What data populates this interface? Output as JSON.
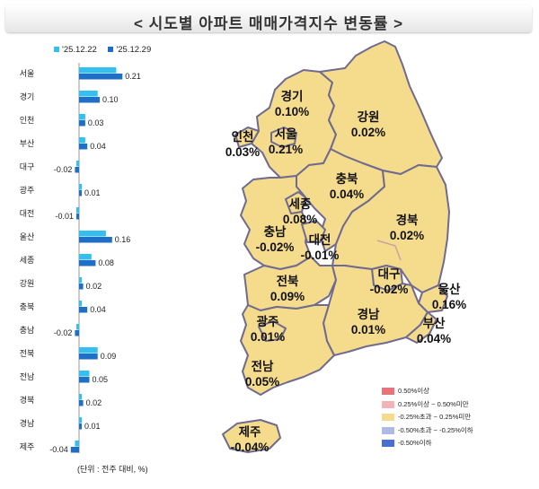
{
  "title": "< 시도별 아파트 매매가격지수 변동률 >",
  "legend": {
    "week1": {
      "label": "'25.12.22",
      "color": "#33c0f0"
    },
    "week2": {
      "label": "'25.12.29",
      "color": "#1f6fc6"
    }
  },
  "chart_data": {
    "type": "bar",
    "orientation": "horizontal",
    "categories": [
      "서울",
      "경기",
      "인천",
      "부산",
      "대구",
      "광주",
      "대전",
      "울산",
      "세종",
      "강원",
      "충북",
      "충남",
      "전북",
      "전남",
      "경북",
      "경남",
      "제주"
    ],
    "series": [
      {
        "name": "'25.12.22",
        "values": [
          0.18,
          0.09,
          0.03,
          0.03,
          -0.01,
          0.01,
          -0.01,
          0.13,
          0.06,
          0.01,
          0.01,
          -0.01,
          0.09,
          0.05,
          0.01,
          0.01,
          -0.02
        ]
      },
      {
        "name": "'25.12.29",
        "values": [
          0.21,
          0.1,
          0.03,
          0.04,
          -0.02,
          0.01,
          -0.01,
          0.16,
          0.08,
          0.02,
          0.04,
          -0.02,
          0.09,
          0.05,
          0.02,
          0.01,
          -0.04
        ]
      }
    ],
    "data_labels": [
      "0.21",
      "0.10",
      "0.03",
      "0.04",
      "-0.02",
      "0.01",
      "-0.01",
      "0.16",
      "0.08",
      "0.02",
      "0.04",
      "-0.02",
      "0.09",
      "0.05",
      "0.02",
      "0.01",
      "-0.04"
    ],
    "colors": {
      "week1": "#33c0f0",
      "week2": "#1f6fc6"
    }
  },
  "unit_note": "(단위 : 전주 대비, %)",
  "map": {
    "base_color": "#f5dc8c",
    "border_color": "#6f6a8f",
    "regions": [
      {
        "name": "경기",
        "value": "0.10%"
      },
      {
        "name": "강원",
        "value": "0.02%"
      },
      {
        "name": "인천",
        "value": "0.03%"
      },
      {
        "name": "서울",
        "value": "0.21%"
      },
      {
        "name": "충북",
        "value": "0.04%"
      },
      {
        "name": "세종",
        "value": "0.08%"
      },
      {
        "name": "충남",
        "value": "-0.02%"
      },
      {
        "name": "대전",
        "value": "-0.01%"
      },
      {
        "name": "경북",
        "value": "0.02%"
      },
      {
        "name": "전북",
        "value": "0.09%"
      },
      {
        "name": "대구",
        "value": "-0.02%"
      },
      {
        "name": "울산",
        "value": "0.16%"
      },
      {
        "name": "광주",
        "value": "0.01%"
      },
      {
        "name": "경남",
        "value": "0.01%"
      },
      {
        "name": "부산",
        "value": "0.04%"
      },
      {
        "name": "전남",
        "value": "0.05%"
      },
      {
        "name": "제주",
        "value": "-0.04%"
      }
    ],
    "legend": [
      {
        "label": "0.50%이상",
        "color": "#e8747a"
      },
      {
        "label": "0.25%이상 ~ 0.50%미만",
        "color": "#f3b3b8"
      },
      {
        "label": "-0.25%초과 ~ 0.25%미만",
        "color": "#f5dc8c"
      },
      {
        "label": "-0.50%초과 ~ -0.25%이하",
        "color": "#aeb9e6"
      },
      {
        "label": "-0.50%이하",
        "color": "#4a6fd0"
      }
    ]
  }
}
